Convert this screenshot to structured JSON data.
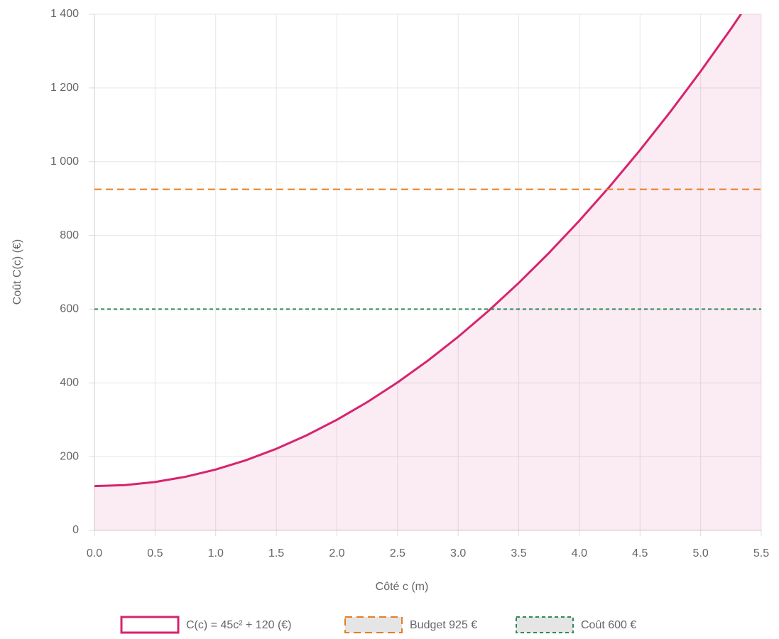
{
  "chart_data": {
    "type": "line",
    "xlabel": "Côté c (m)",
    "ylabel": "Coût C(c) (€)",
    "x": [
      0,
      0.25,
      0.5,
      0.75,
      1,
      1.25,
      1.5,
      1.75,
      2,
      2.25,
      2.5,
      2.75,
      3,
      3.25,
      3.5,
      3.75,
      4,
      4.25,
      4.5,
      4.75,
      5,
      5.25,
      5.5
    ],
    "series": [
      {
        "name": "C(c) = 45c² + 120 (€)",
        "color": "#d6246e",
        "fill": "rgba(214,36,110,0.09)",
        "width": 3,
        "values": [
          120,
          122.8125,
          131.25,
          145.3125,
          165,
          190.3125,
          221.25,
          257.8125,
          300,
          347.8125,
          401.25,
          460.3125,
          525,
          595.3125,
          671.25,
          752.8125,
          840,
          932.8125,
          1031.25,
          1135.3125,
          1245,
          1360.3125,
          1481.25
        ]
      },
      {
        "name": "Budget 925 €",
        "color": "#e67e22",
        "dash": "10,6",
        "width": 2,
        "values": [
          925,
          925,
          925,
          925,
          925,
          925,
          925,
          925,
          925,
          925,
          925,
          925,
          925,
          925,
          925,
          925,
          925,
          925,
          925,
          925,
          925,
          925,
          925
        ]
      },
      {
        "name": "Coût 600 €",
        "color": "#2e8b57",
        "dash": "5,4",
        "width": 2,
        "values": [
          600,
          600,
          600,
          600,
          600,
          600,
          600,
          600,
          600,
          600,
          600,
          600,
          600,
          600,
          600,
          600,
          600,
          600,
          600,
          600,
          600,
          600,
          600
        ]
      }
    ],
    "xlim": [
      0,
      5.5
    ],
    "ylim": [
      0,
      1400
    ],
    "xticks": [
      {
        "value": 0,
        "label": "0.0"
      },
      0.5,
      {
        "value": 1,
        "label": "1.0"
      },
      1.5,
      {
        "value": 2,
        "label": "2.0"
      },
      2.5,
      {
        "value": 3,
        "label": "3.0"
      },
      3.5,
      {
        "value": 4,
        "label": "4.0"
      },
      4.5,
      {
        "value": 5,
        "label": "5.0"
      },
      5.5
    ],
    "yticks": [
      0,
      200,
      400,
      600,
      800,
      {
        "value": 1000,
        "label": "1 000"
      },
      {
        "value": 1200,
        "label": "1 200"
      },
      {
        "value": 1400,
        "label": "1 400"
      }
    ],
    "grid": true,
    "legend": "bottom"
  }
}
